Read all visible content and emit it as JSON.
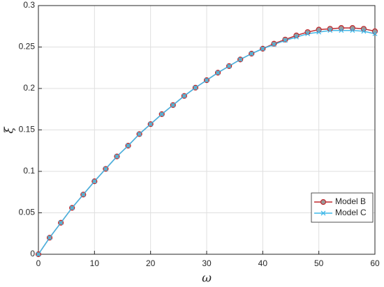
{
  "chart_data": {
    "type": "line",
    "x_label": "ω",
    "y_label": "ξ",
    "x": [
      0,
      2,
      4,
      6,
      8,
      10,
      12,
      14,
      16,
      18,
      20,
      22,
      24,
      26,
      28,
      30,
      32,
      34,
      36,
      38,
      40,
      42,
      44,
      46,
      48,
      50,
      52,
      54,
      56,
      58,
      60
    ],
    "series": [
      {
        "name": "Model B",
        "color": "#c0282d",
        "marker": "o",
        "values": [
          0,
          0.02,
          0.038,
          0.056,
          0.072,
          0.088,
          0.103,
          0.118,
          0.131,
          0.145,
          0.157,
          0.169,
          0.18,
          0.191,
          0.201,
          0.21,
          0.219,
          0.227,
          0.235,
          0.242,
          0.248,
          0.254,
          0.259,
          0.264,
          0.268,
          0.271,
          0.272,
          0.273,
          0.273,
          0.272,
          0.269
        ]
      },
      {
        "name": "Model C",
        "color": "#3fb8e8",
        "marker": "x",
        "values": [
          0,
          0.02,
          0.038,
          0.056,
          0.072,
          0.088,
          0.103,
          0.118,
          0.131,
          0.145,
          0.157,
          0.169,
          0.18,
          0.191,
          0.201,
          0.21,
          0.219,
          0.227,
          0.235,
          0.242,
          0.248,
          0.253,
          0.258,
          0.262,
          0.266,
          0.268,
          0.27,
          0.27,
          0.27,
          0.269,
          0.266
        ]
      }
    ],
    "xlim": [
      0,
      60
    ],
    "xticks": [
      0,
      10,
      20,
      30,
      40,
      50,
      60
    ],
    "ylim": [
      0,
      0.3
    ],
    "yticks": [
      0,
      0.05,
      0.1,
      0.15,
      0.2,
      0.25,
      0.3
    ],
    "grid": true,
    "legend": "southeast"
  }
}
